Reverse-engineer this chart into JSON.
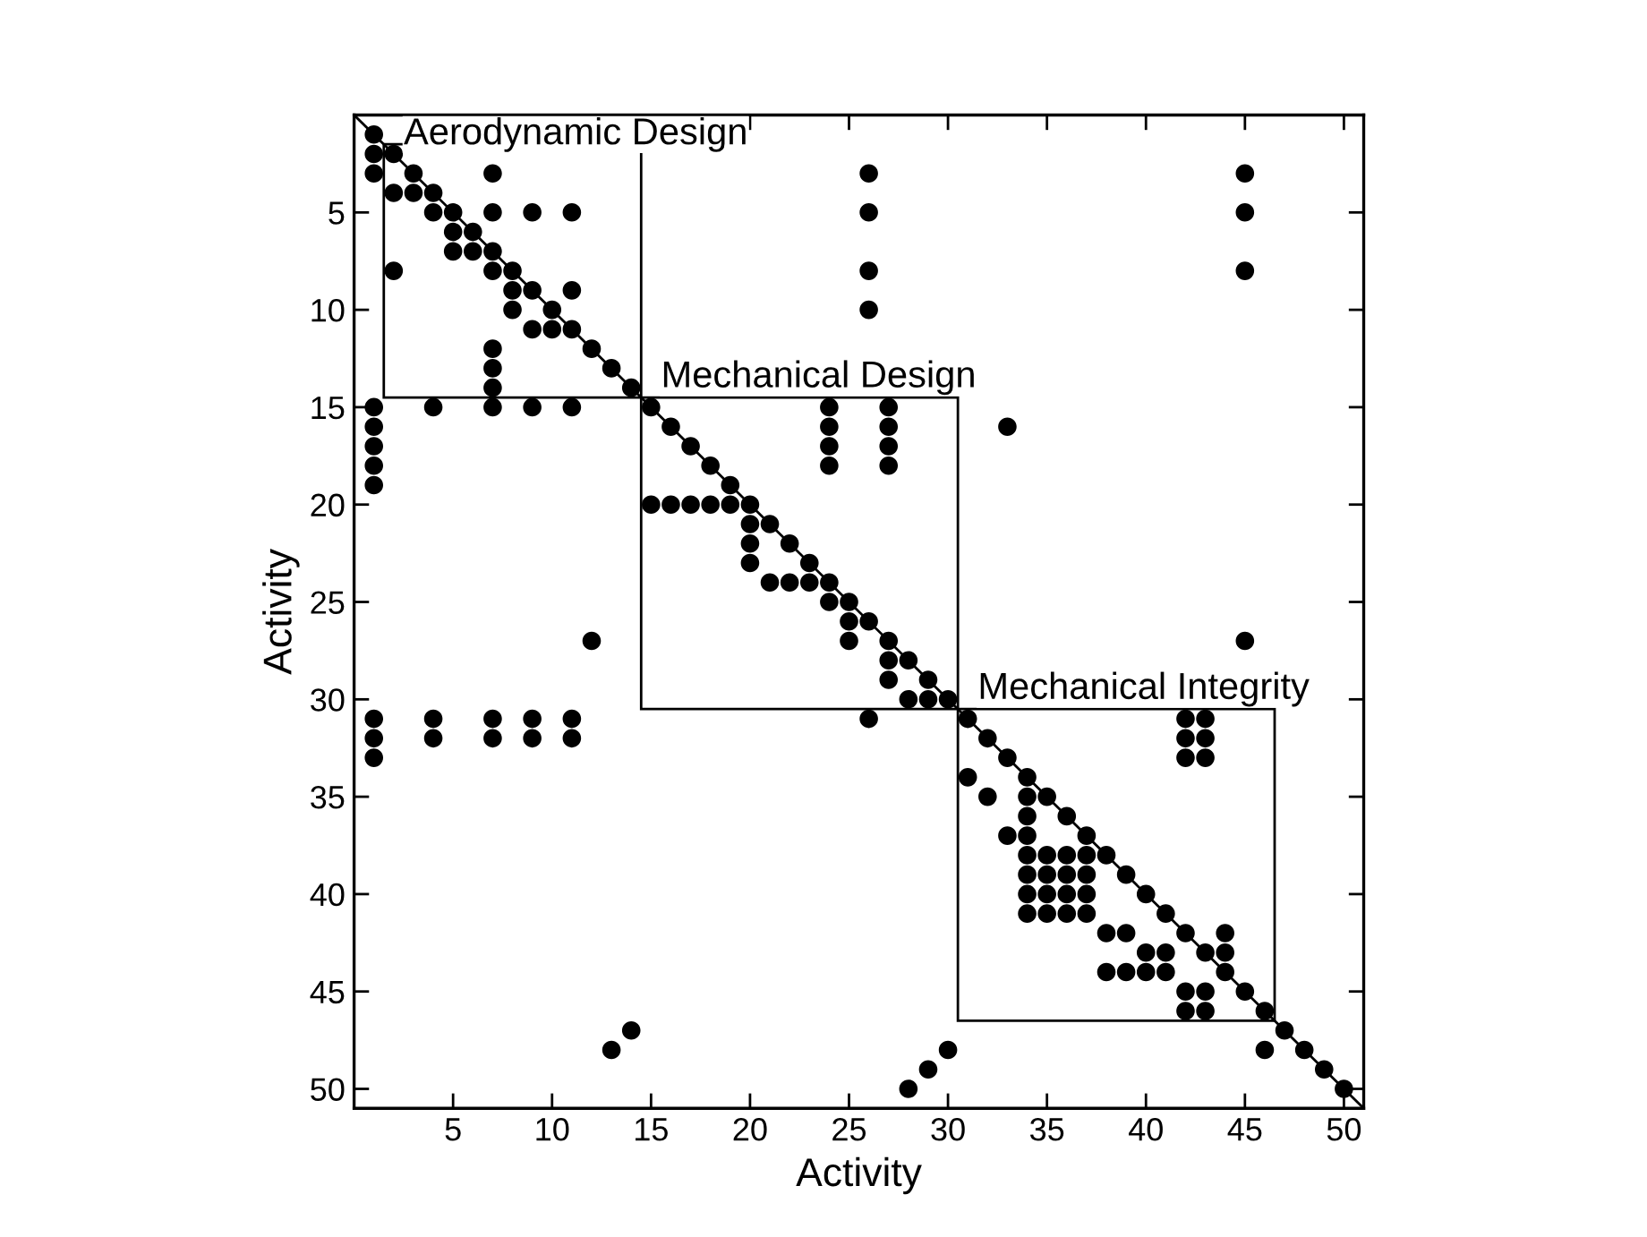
{
  "chart_data": {
    "type": "scatter",
    "xlabel": "Activity",
    "ylabel": "Activity",
    "xlim": [
      0,
      51
    ],
    "ylim": [
      51,
      0
    ],
    "xticks": [
      5,
      10,
      15,
      20,
      25,
      30,
      35,
      40,
      45,
      50
    ],
    "yticks": [
      5,
      10,
      15,
      20,
      25,
      30,
      35,
      40,
      45,
      50
    ],
    "grid": false,
    "legend": false,
    "line_style": "solid",
    "annotations": [
      {
        "text": "Aerodynamic Design",
        "x": 1.5,
        "y": 1.5
      },
      {
        "text": "Mechanical Design",
        "x": 14.5,
        "y": 14.5
      },
      {
        "text": "Mechanical Integrity",
        "x": 30.5,
        "y": 30.5
      }
    ],
    "series": [
      {
        "type": "line",
        "color": "#000000",
        "x": [
          0,
          51
        ],
        "values": [
          0,
          51
        ]
      },
      {
        "color": "#000000",
        "x": [
          1,
          1,
          2,
          1,
          3,
          7,
          26,
          45,
          2,
          3,
          4,
          4,
          5,
          7,
          9,
          11,
          26,
          45,
          5,
          6,
          5,
          6,
          7,
          2,
          7,
          8,
          26,
          45,
          8,
          9,
          11,
          8,
          10,
          26,
          9,
          10,
          11,
          7,
          12,
          7,
          13,
          7,
          14,
          1,
          4,
          7,
          9,
          11,
          15,
          24,
          27,
          1,
          16,
          24,
          27,
          33,
          1,
          17,
          24,
          27,
          1,
          18,
          24,
          27,
          1,
          19,
          15,
          16,
          17,
          18,
          19,
          20,
          20,
          21,
          20,
          22,
          20,
          23,
          21,
          22,
          23,
          24,
          24,
          25,
          25,
          26,
          12,
          25,
          27,
          45,
          27,
          28,
          27,
          29,
          28,
          29,
          30,
          1,
          4,
          7,
          9,
          11,
          26,
          31,
          42,
          43,
          1,
          4,
          7,
          9,
          11,
          32,
          42,
          43,
          1,
          33,
          42,
          43,
          31,
          34,
          32,
          34,
          35,
          34,
          36,
          33,
          34,
          37,
          34,
          35,
          36,
          37,
          38,
          34,
          35,
          36,
          37,
          39,
          34,
          35,
          36,
          37,
          40,
          34,
          35,
          36,
          37,
          41,
          38,
          39,
          42,
          44,
          40,
          41,
          43,
          44,
          38,
          39,
          40,
          41,
          44,
          42,
          43,
          45,
          42,
          43,
          46,
          14,
          47,
          13,
          30,
          46,
          48,
          29,
          49,
          28,
          50
        ],
        "values": [
          1,
          2,
          2,
          3,
          3,
          3,
          3,
          3,
          4,
          4,
          4,
          5,
          5,
          5,
          5,
          5,
          5,
          5,
          6,
          6,
          7,
          7,
          7,
          8,
          8,
          8,
          8,
          8,
          9,
          9,
          9,
          10,
          10,
          10,
          11,
          11,
          11,
          12,
          12,
          13,
          13,
          14,
          14,
          15,
          15,
          15,
          15,
          15,
          15,
          15,
          15,
          16,
          16,
          16,
          16,
          16,
          17,
          17,
          17,
          17,
          18,
          18,
          18,
          18,
          19,
          19,
          20,
          20,
          20,
          20,
          20,
          20,
          21,
          21,
          22,
          22,
          23,
          23,
          24,
          24,
          24,
          24,
          25,
          25,
          26,
          26,
          27,
          27,
          27,
          27,
          28,
          28,
          29,
          29,
          30,
          30,
          30,
          31,
          31,
          31,
          31,
          31,
          31,
          31,
          31,
          31,
          32,
          32,
          32,
          32,
          32,
          32,
          32,
          32,
          33,
          33,
          33,
          33,
          34,
          34,
          35,
          35,
          35,
          36,
          36,
          37,
          37,
          37,
          38,
          38,
          38,
          38,
          38,
          39,
          39,
          39,
          39,
          39,
          40,
          40,
          40,
          40,
          40,
          41,
          41,
          41,
          41,
          41,
          42,
          42,
          42,
          42,
          43,
          43,
          43,
          43,
          44,
          44,
          44,
          44,
          44,
          45,
          45,
          45,
          46,
          46,
          46,
          47,
          47,
          48,
          48,
          48,
          48,
          49,
          49,
          50,
          50
        ]
      }
    ]
  }
}
